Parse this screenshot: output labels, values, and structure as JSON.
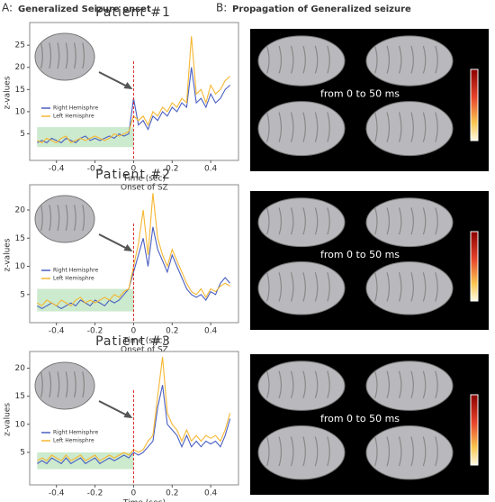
{
  "figure": {
    "panel_a_letter": "A:",
    "panel_a_title": "Generalized Seizure onset",
    "panel_b_letter": "B:",
    "panel_b_title": "Propagation of Generalized seizure",
    "panel_b_notes": [
      "from 0 to 50 ms",
      "from 0 to 50 ms",
      "from 0 to 50 ms"
    ]
  },
  "chart_data": [
    {
      "type": "line",
      "title": "Patient #1",
      "xlabel": "Time (sec)",
      "ylabel": "z-values",
      "annotation": "Onset of SZ",
      "onset_x": 0,
      "highlight": {
        "x": [
          -0.5,
          0
        ],
        "y": [
          2,
          6.5
        ]
      },
      "xlim": [
        -0.52,
        0.53
      ],
      "ylim": [
        -1,
        29.5
      ],
      "xticks": [
        -0.4,
        -0.2,
        0,
        0.2,
        0.4
      ],
      "yticks": [
        5,
        10,
        15,
        20,
        25
      ],
      "x": [
        -0.5,
        -0.475,
        -0.45,
        -0.425,
        -0.4,
        -0.375,
        -0.35,
        -0.325,
        -0.3,
        -0.275,
        -0.25,
        -0.225,
        -0.2,
        -0.175,
        -0.15,
        -0.125,
        -0.1,
        -0.075,
        -0.05,
        -0.025,
        0,
        0.025,
        0.05,
        0.075,
        0.1,
        0.125,
        0.15,
        0.175,
        0.2,
        0.225,
        0.25,
        0.275,
        0.3,
        0.325,
        0.35,
        0.375,
        0.4,
        0.425,
        0.45,
        0.475,
        0.5
      ],
      "series": [
        {
          "name": "Right Hemisphre",
          "color": "#4a5fc1",
          "values": [
            3,
            3.5,
            3,
            4,
            3.5,
            3,
            4,
            3.5,
            3,
            4,
            4.5,
            3.5,
            4,
            3.5,
            4,
            4.5,
            4,
            5,
            4.5,
            5,
            13,
            7,
            8,
            6,
            9,
            8,
            10,
            9,
            11,
            10,
            12,
            11,
            20,
            12,
            13,
            11,
            14,
            12,
            13,
            15,
            16
          ]
        },
        {
          "name": "Left Hemisphre",
          "color": "#f5b731",
          "values": [
            3.5,
            3,
            4,
            3.5,
            3,
            4,
            4.5,
            3,
            3.5,
            4,
            3.5,
            4,
            4.5,
            4,
            3.5,
            4,
            5,
            4.5,
            5,
            5.5,
            9,
            8,
            9,
            7,
            10,
            9,
            11,
            10,
            12,
            11,
            13,
            12,
            27,
            14,
            15,
            12,
            16,
            14,
            15,
            17,
            18
          ]
        }
      ]
    },
    {
      "type": "line",
      "title": "Patient #2",
      "xlabel": "Time (sec)",
      "ylabel": "z-values",
      "annotation": "Onset of SZ",
      "onset_x": 0,
      "highlight": {
        "x": [
          -0.5,
          0
        ],
        "y": [
          2,
          6
        ]
      },
      "xlim": [
        -0.52,
        0.53
      ],
      "ylim": [
        0,
        24
      ],
      "xticks": [
        -0.4,
        -0.2,
        0,
        0.2,
        0.4
      ],
      "yticks": [
        5,
        10,
        15,
        20
      ],
      "x": [
        -0.5,
        -0.475,
        -0.45,
        -0.425,
        -0.4,
        -0.375,
        -0.35,
        -0.325,
        -0.3,
        -0.275,
        -0.25,
        -0.225,
        -0.2,
        -0.175,
        -0.15,
        -0.125,
        -0.1,
        -0.075,
        -0.05,
        -0.025,
        0,
        0.025,
        0.05,
        0.075,
        0.1,
        0.125,
        0.15,
        0.175,
        0.2,
        0.225,
        0.25,
        0.275,
        0.3,
        0.325,
        0.35,
        0.375,
        0.4,
        0.425,
        0.45,
        0.475,
        0.5
      ],
      "series": [
        {
          "name": "Right Hemisphre",
          "color": "#4a5fc1",
          "values": [
            3,
            2.5,
            3,
            3.5,
            3,
            2.5,
            3,
            3.5,
            3,
            4,
            3.5,
            3,
            4,
            3.5,
            3,
            4,
            3.5,
            4,
            5,
            6,
            9,
            12,
            15,
            10,
            17,
            13,
            11,
            9,
            12,
            10,
            8,
            6,
            5,
            4.5,
            5,
            4,
            5.5,
            5,
            7,
            8,
            7
          ]
        },
        {
          "name": "Left Hemisphre",
          "color": "#f5b731",
          "values": [
            3.5,
            3,
            4,
            3.5,
            3,
            4,
            3.5,
            3,
            4,
            4.5,
            3.5,
            4,
            3.5,
            4,
            4.5,
            4,
            5,
            4.5,
            5.5,
            6,
            10,
            14,
            20,
            12,
            23,
            15,
            12,
            10,
            13,
            11,
            9,
            7,
            5.5,
            5,
            6,
            4.5,
            6,
            5.5,
            6.5,
            7,
            6.5
          ]
        }
      ]
    },
    {
      "type": "line",
      "title": "Patient #3",
      "xlabel": "Time (sec)",
      "ylabel": "z-values",
      "onset_x": 0,
      "highlight": {
        "x": [
          -0.5,
          0
        ],
        "y": [
          2,
          5
        ]
      },
      "xlim": [
        -0.52,
        0.53
      ],
      "ylim": [
        -0.8,
        22.5
      ],
      "xticks": [
        -0.4,
        -0.2,
        0,
        0.2,
        0.4
      ],
      "yticks": [
        5,
        10,
        15,
        20
      ],
      "x": [
        -0.5,
        -0.475,
        -0.45,
        -0.425,
        -0.4,
        -0.375,
        -0.35,
        -0.325,
        -0.3,
        -0.275,
        -0.25,
        -0.225,
        -0.2,
        -0.175,
        -0.15,
        -0.125,
        -0.1,
        -0.075,
        -0.05,
        -0.025,
        0,
        0.025,
        0.05,
        0.075,
        0.1,
        0.125,
        0.15,
        0.175,
        0.2,
        0.225,
        0.25,
        0.275,
        0.3,
        0.325,
        0.35,
        0.375,
        0.4,
        0.425,
        0.45,
        0.475,
        0.5
      ],
      "series": [
        {
          "name": "Right Hemisphre",
          "color": "#4a5fc1",
          "values": [
            3,
            3.5,
            3,
            4,
            3.5,
            3,
            4,
            3,
            3.5,
            4,
            3,
            3.5,
            4,
            3,
            3.5,
            4,
            3.5,
            4,
            4.5,
            4,
            5,
            4.5,
            5,
            6,
            7,
            13,
            17,
            10,
            9,
            8,
            6,
            8,
            6,
            7,
            6,
            7,
            6.5,
            7,
            6,
            8,
            11
          ]
        },
        {
          "name": "Left Hemisphre",
          "color": "#f5b731",
          "values": [
            3.5,
            4,
            3.5,
            4.5,
            4,
            3.5,
            4.5,
            3.5,
            4,
            4.5,
            3.5,
            4,
            4.5,
            3.5,
            4,
            4.5,
            4,
            4.5,
            5,
            4.5,
            5.5,
            5,
            5.5,
            7,
            8,
            15,
            22,
            12,
            10,
            9,
            7,
            9,
            7,
            8,
            7,
            8,
            7.5,
            8,
            7,
            9,
            12
          ]
        }
      ]
    }
  ]
}
